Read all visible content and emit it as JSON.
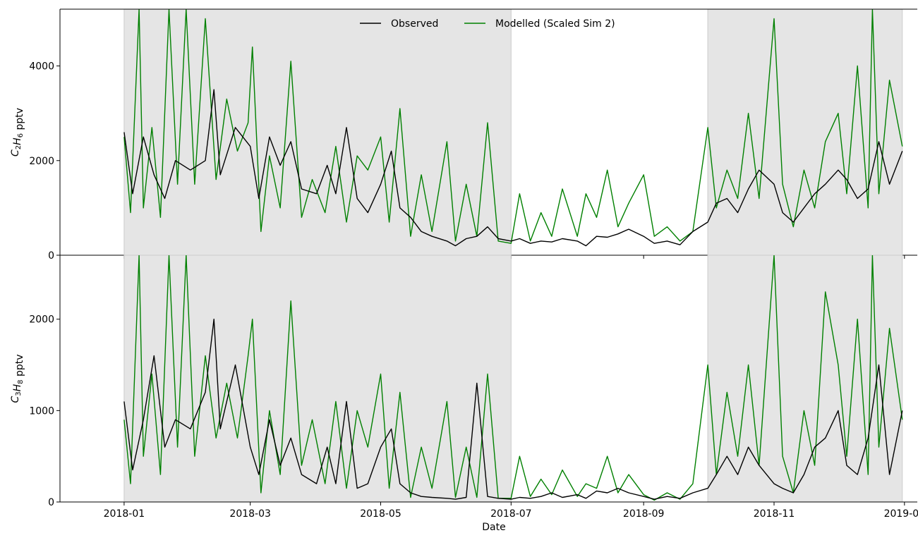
{
  "chart_data": {
    "type": "line",
    "xlabel": "Date",
    "x_ticks": [
      "2018-01",
      "2018-03",
      "2018-05",
      "2018-07",
      "2018-09",
      "2018-11",
      "2019-01"
    ],
    "x_range": [
      "2017-12-02",
      "2019-01-07"
    ],
    "colors": {
      "observed": "#000000",
      "modelled": "#008000",
      "shade": "#e5e5e5",
      "shade_edge": "#cccccc"
    },
    "legend": {
      "placement": "top-center",
      "entries": [
        "Observed",
        "Modelled (Scaled Sim 2)"
      ]
    },
    "shaded_periods": [
      [
        "2018-01-01",
        "2018-07-01"
      ],
      [
        "2018-10-01",
        "2018-12-31"
      ]
    ],
    "panels": [
      {
        "ylabel_base": "C",
        "ylabel_sub1": "2",
        "ylabel_mid": "H",
        "ylabel_sub2": "6",
        "ylabel_unit": " pptv",
        "ylim": [
          0,
          5200
        ],
        "y_ticks": [
          0,
          2000,
          4000
        ],
        "y_tick_labels": [
          "0",
          "2000",
          "4000"
        ],
        "series": [
          {
            "name": "Observed",
            "x": [
              "2018-01-01",
              "2018-01-05",
              "2018-01-10",
              "2018-01-15",
              "2018-01-20",
              "2018-01-25",
              "2018-02-01",
              "2018-02-08",
              "2018-02-12",
              "2018-02-15",
              "2018-02-22",
              "2018-03-01",
              "2018-03-05",
              "2018-03-10",
              "2018-03-15",
              "2018-03-20",
              "2018-03-25",
              "2018-04-01",
              "2018-04-06",
              "2018-04-10",
              "2018-04-15",
              "2018-04-20",
              "2018-04-25",
              "2018-05-01",
              "2018-05-06",
              "2018-05-10",
              "2018-05-15",
              "2018-05-20",
              "2018-05-25",
              "2018-06-01",
              "2018-06-05",
              "2018-06-10",
              "2018-06-15",
              "2018-06-20",
              "2018-06-25",
              "2018-07-01",
              "2018-07-05",
              "2018-07-10",
              "2018-07-15",
              "2018-07-20",
              "2018-07-25",
              "2018-08-01",
              "2018-08-05",
              "2018-08-10",
              "2018-08-15",
              "2018-08-20",
              "2018-08-25",
              "2018-09-01",
              "2018-09-06",
              "2018-09-12",
              "2018-09-18",
              "2018-09-24",
              "2018-10-01",
              "2018-10-05",
              "2018-10-10",
              "2018-10-15",
              "2018-10-20",
              "2018-10-25",
              "2018-11-01",
              "2018-11-05",
              "2018-11-10",
              "2018-11-15",
              "2018-11-20",
              "2018-11-25",
              "2018-12-01",
              "2018-12-05",
              "2018-12-10",
              "2018-12-15",
              "2018-12-20",
              "2018-12-25",
              "2018-12-31"
            ],
            "y": [
              2600,
              1300,
              2500,
              1700,
              1200,
              2000,
              1800,
              2000,
              3500,
              1700,
              2700,
              2300,
              1200,
              2500,
              1900,
              2400,
              1400,
              1300,
              1900,
              1300,
              2700,
              1200,
              900,
              1500,
              2200,
              1000,
              800,
              500,
              400,
              300,
              200,
              350,
              400,
              600,
              350,
              300,
              350,
              250,
              300,
              280,
              350,
              300,
              200,
              400,
              380,
              450,
              550,
              400,
              250,
              300,
              220,
              500,
              700,
              1100,
              1200,
              900,
              1400,
              1800,
              1500,
              900,
              700,
              1000,
              1300,
              1500,
              1800,
              1600,
              1200,
              1400,
              2400,
              1500,
              2200
            ]
          },
          {
            "name": "Modelled (Scaled Sim 2)",
            "x": [
              "2018-01-01",
              "2018-01-04",
              "2018-01-08",
              "2018-01-10",
              "2018-01-14",
              "2018-01-18",
              "2018-01-22",
              "2018-01-26",
              "2018-01-30",
              "2018-02-03",
              "2018-02-08",
              "2018-02-13",
              "2018-02-18",
              "2018-02-23",
              "2018-02-28",
              "2018-03-02",
              "2018-03-06",
              "2018-03-10",
              "2018-03-15",
              "2018-03-20",
              "2018-03-25",
              "2018-03-30",
              "2018-04-05",
              "2018-04-10",
              "2018-04-15",
              "2018-04-20",
              "2018-04-25",
              "2018-05-01",
              "2018-05-05",
              "2018-05-10",
              "2018-05-15",
              "2018-05-20",
              "2018-05-25",
              "2018-06-01",
              "2018-06-05",
              "2018-06-10",
              "2018-06-15",
              "2018-06-20",
              "2018-06-25",
              "2018-07-01",
              "2018-07-05",
              "2018-07-10",
              "2018-07-15",
              "2018-07-20",
              "2018-07-25",
              "2018-08-01",
              "2018-08-05",
              "2018-08-10",
              "2018-08-15",
              "2018-08-20",
              "2018-08-25",
              "2018-09-01",
              "2018-09-06",
              "2018-09-12",
              "2018-09-18",
              "2018-09-24",
              "2018-10-01",
              "2018-10-05",
              "2018-10-10",
              "2018-10-15",
              "2018-10-20",
              "2018-10-25",
              "2018-11-01",
              "2018-11-05",
              "2018-11-10",
              "2018-11-15",
              "2018-11-20",
              "2018-11-25",
              "2018-12-01",
              "2018-12-05",
              "2018-12-10",
              "2018-12-15",
              "2018-12-17",
              "2018-12-20",
              "2018-12-25",
              "2018-12-31"
            ],
            "y": [
              2500,
              900,
              5200,
              1000,
              2700,
              800,
              5200,
              1500,
              5200,
              1500,
              5000,
              1600,
              3300,
              2200,
              2800,
              4400,
              500,
              2100,
              1000,
              4100,
              800,
              1600,
              900,
              2300,
              700,
              2100,
              1800,
              2500,
              700,
              3100,
              400,
              1700,
              500,
              2400,
              300,
              1500,
              400,
              2800,
              300,
              250,
              1300,
              300,
              900,
              400,
              1400,
              400,
              1300,
              800,
              1800,
              600,
              1100,
              1700,
              400,
              600,
              300,
              500,
              2700,
              1000,
              1800,
              1200,
              3000,
              1200,
              5000,
              1500,
              600,
              1800,
              1000,
              2400,
              3000,
              1300,
              4000,
              1000,
              5200,
              1300,
              3700,
              2300
            ]
          }
        ]
      },
      {
        "ylabel_base": "C",
        "ylabel_sub1": "3",
        "ylabel_mid": "H",
        "ylabel_sub2": "8",
        "ylabel_unit": " pptv",
        "ylim": [
          0,
          2700
        ],
        "y_ticks": [
          0,
          1000,
          2000
        ],
        "y_tick_labels": [
          "0",
          "1000",
          "2000"
        ],
        "series": [
          {
            "name": "Observed",
            "x": [
              "2018-01-01",
              "2018-01-05",
              "2018-01-10",
              "2018-01-15",
              "2018-01-20",
              "2018-01-25",
              "2018-02-01",
              "2018-02-08",
              "2018-02-12",
              "2018-02-15",
              "2018-02-22",
              "2018-03-01",
              "2018-03-05",
              "2018-03-10",
              "2018-03-15",
              "2018-03-20",
              "2018-03-25",
              "2018-04-01",
              "2018-04-06",
              "2018-04-10",
              "2018-04-15",
              "2018-04-20",
              "2018-04-25",
              "2018-05-01",
              "2018-05-06",
              "2018-05-10",
              "2018-05-15",
              "2018-05-20",
              "2018-05-25",
              "2018-06-01",
              "2018-06-05",
              "2018-06-10",
              "2018-06-15",
              "2018-06-20",
              "2018-06-25",
              "2018-07-01",
              "2018-07-05",
              "2018-07-10",
              "2018-07-15",
              "2018-07-20",
              "2018-07-25",
              "2018-08-01",
              "2018-08-05",
              "2018-08-10",
              "2018-08-15",
              "2018-08-20",
              "2018-08-25",
              "2018-09-01",
              "2018-09-06",
              "2018-09-12",
              "2018-09-18",
              "2018-09-24",
              "2018-10-01",
              "2018-10-05",
              "2018-10-10",
              "2018-10-15",
              "2018-10-20",
              "2018-10-25",
              "2018-11-01",
              "2018-11-05",
              "2018-11-10",
              "2018-11-15",
              "2018-11-20",
              "2018-11-25",
              "2018-12-01",
              "2018-12-05",
              "2018-12-10",
              "2018-12-15",
              "2018-12-20",
              "2018-12-25",
              "2018-12-31"
            ],
            "y": [
              1100,
              350,
              900,
              1600,
              600,
              900,
              800,
              1200,
              2000,
              800,
              1500,
              600,
              300,
              900,
              400,
              700,
              300,
              200,
              600,
              200,
              1100,
              150,
              200,
              600,
              800,
              200,
              100,
              60,
              50,
              40,
              30,
              50,
              1300,
              60,
              40,
              30,
              50,
              40,
              60,
              100,
              50,
              80,
              40,
              120,
              100,
              150,
              100,
              60,
              30,
              60,
              40,
              100,
              150,
              300,
              500,
              300,
              600,
              400,
              200,
              150,
              100,
              300,
              600,
              700,
              1000,
              400,
              300,
              700,
              1500,
              300,
              1000
            ]
          },
          {
            "name": "Modelled (Scaled Sim 2)",
            "x": [
              "2018-01-01",
              "2018-01-04",
              "2018-01-08",
              "2018-01-10",
              "2018-01-14",
              "2018-01-18",
              "2018-01-22",
              "2018-01-26",
              "2018-01-30",
              "2018-02-03",
              "2018-02-08",
              "2018-02-13",
              "2018-02-18",
              "2018-02-23",
              "2018-02-28",
              "2018-03-02",
              "2018-03-06",
              "2018-03-10",
              "2018-03-15",
              "2018-03-20",
              "2018-03-25",
              "2018-03-30",
              "2018-04-05",
              "2018-04-10",
              "2018-04-15",
              "2018-04-20",
              "2018-04-25",
              "2018-05-01",
              "2018-05-05",
              "2018-05-10",
              "2018-05-15",
              "2018-05-20",
              "2018-05-25",
              "2018-06-01",
              "2018-06-05",
              "2018-06-10",
              "2018-06-15",
              "2018-06-20",
              "2018-06-25",
              "2018-07-01",
              "2018-07-05",
              "2018-07-10",
              "2018-07-15",
              "2018-07-20",
              "2018-07-25",
              "2018-08-01",
              "2018-08-05",
              "2018-08-10",
              "2018-08-15",
              "2018-08-20",
              "2018-08-25",
              "2018-09-01",
              "2018-09-06",
              "2018-09-12",
              "2018-09-18",
              "2018-09-24",
              "2018-10-01",
              "2018-10-05",
              "2018-10-10",
              "2018-10-15",
              "2018-10-20",
              "2018-10-25",
              "2018-11-01",
              "2018-11-05",
              "2018-11-10",
              "2018-11-15",
              "2018-11-20",
              "2018-11-25",
              "2018-12-01",
              "2018-12-05",
              "2018-12-10",
              "2018-12-15",
              "2018-12-17",
              "2018-12-20",
              "2018-12-25",
              "2018-12-31"
            ],
            "y": [
              900,
              200,
              2700,
              500,
              1400,
              300,
              2700,
              600,
              2700,
              500,
              1600,
              700,
              1300,
              700,
              1600,
              2000,
              100,
              1000,
              300,
              2200,
              400,
              900,
              200,
              1100,
              150,
              1000,
              600,
              1400,
              150,
              1200,
              50,
              600,
              150,
              1100,
              50,
              600,
              50,
              1400,
              40,
              40,
              500,
              60,
              250,
              80,
              350,
              60,
              200,
              150,
              500,
              100,
              300,
              80,
              20,
              100,
              30,
              200,
              1500,
              300,
              1200,
              500,
              1500,
              400,
              2700,
              500,
              100,
              1000,
              400,
              2300,
              1500,
              500,
              2000,
              300,
              2700,
              600,
              1900,
              900
            ]
          }
        ]
      }
    ]
  }
}
